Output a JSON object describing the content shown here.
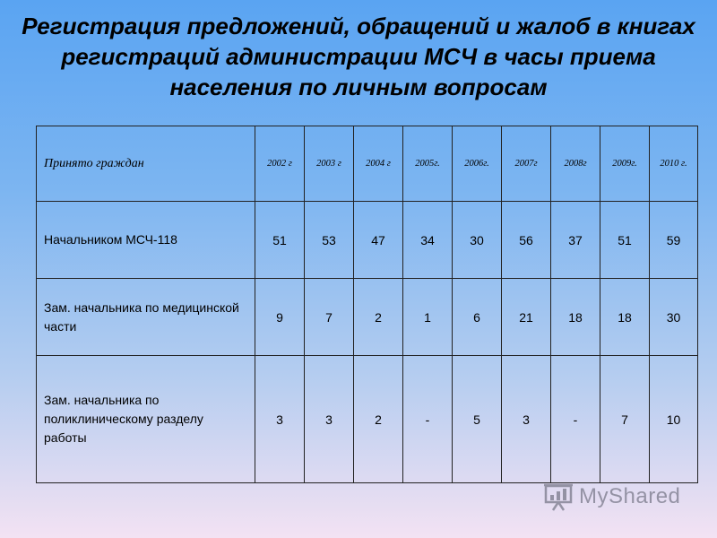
{
  "title": "Регистрация предложений, обращений и жалоб в книгах регистраций администрации МСЧ в часы приема населения по личным вопросам",
  "table": {
    "header_label": "Принято граждан",
    "years": [
      "2002 г",
      "2003 г",
      "2004 г",
      "2005г.",
      "2006г.",
      "2007г",
      "2008г",
      "2009г.",
      "2010 г."
    ],
    "rows": [
      {
        "label": "Начальником МСЧ-118",
        "values": [
          "51",
          "53",
          "47",
          "34",
          "30",
          "56",
          "37",
          "51",
          "59"
        ]
      },
      {
        "label": "Зам. начальника по медицинской части",
        "values": [
          "9",
          "7",
          "2",
          "1",
          "6",
          "21",
          "18",
          "18",
          "30"
        ]
      },
      {
        "label": "Зам. начальника по поликлиническому разделу работы",
        "values": [
          "3",
          "3",
          "2",
          "-",
          "5",
          "3",
          "-",
          "7",
          "10"
        ]
      }
    ]
  },
  "watermark": {
    "text": "MyShared",
    "icon": "presentation-board-icon"
  }
}
